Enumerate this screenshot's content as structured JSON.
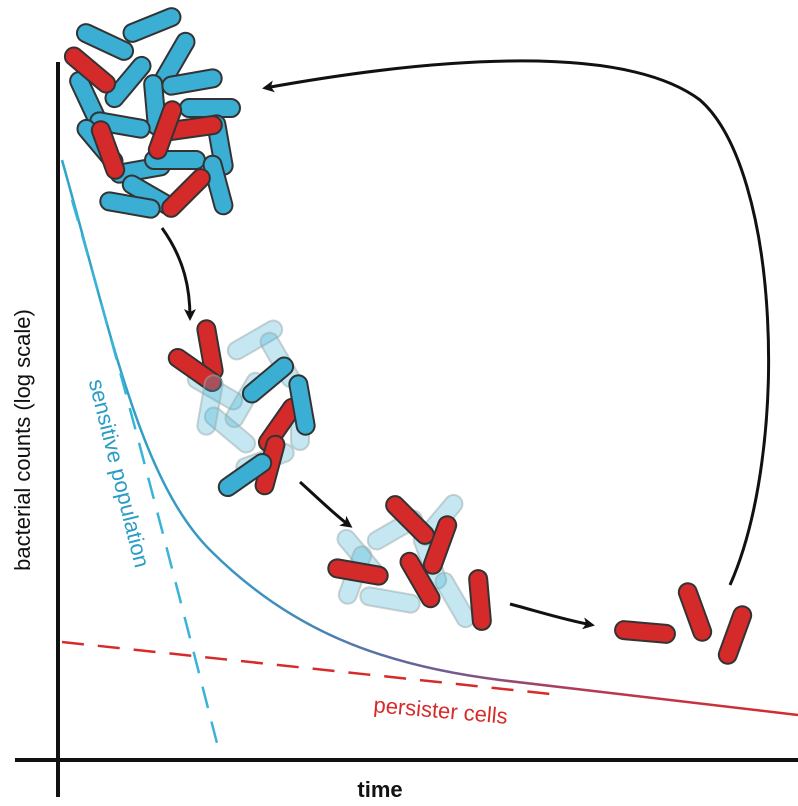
{
  "y_axis_label": "bacterial counts (log scale)",
  "x_axis_label": "time",
  "curve_labels": {
    "sensitive": "sensitive population",
    "persister": "persister cells"
  }
}
